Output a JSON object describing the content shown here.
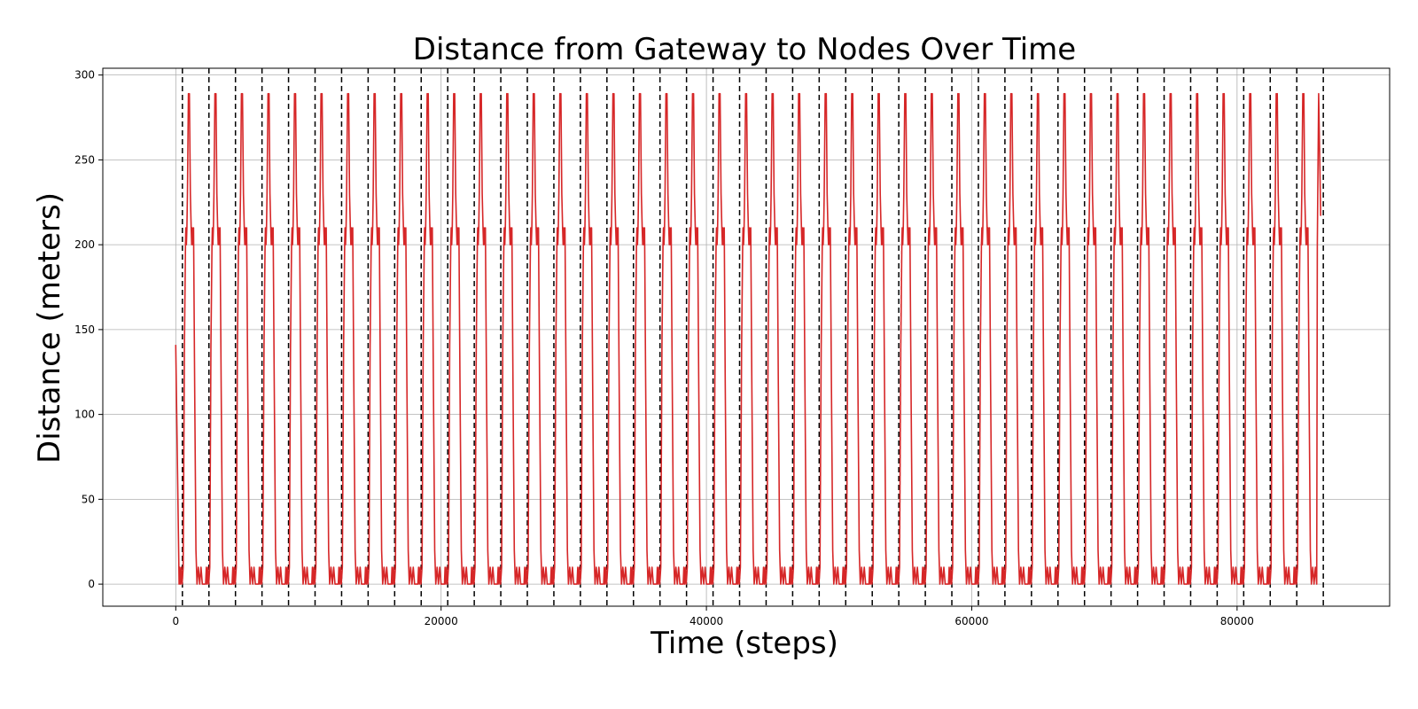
{
  "chart_data": {
    "type": "line",
    "title": "Distance from Gateway to Nodes Over Time",
    "xlabel": "Time (steps)",
    "ylabel": "Distance (meters)",
    "xlim": [
      -5500,
      91500
    ],
    "ylim": [
      -13,
      304
    ],
    "xticks": [
      0,
      20000,
      40000,
      60000,
      80000
    ],
    "yticks": [
      0,
      50,
      100,
      150,
      200,
      250,
      300
    ],
    "grid": true,
    "series": [
      {
        "color": "#d62728",
        "period": 2000,
        "start": {
          "x": 0,
          "y": 141
        },
        "end": {
          "x": 86300,
          "y": 217
        },
        "plateau_low": [
          0,
          10
        ],
        "plateau_mid": [
          200,
          210
        ],
        "peak": 289
      }
    ],
    "vlines": {
      "style": "dashed",
      "color": "#000000",
      "x": [
        500,
        2500,
        4500,
        6500,
        8500,
        10500,
        12500,
        14500,
        16500,
        18500,
        20500,
        22500,
        24500,
        26500,
        28500,
        30500,
        32500,
        34500,
        36500,
        38500,
        40500,
        42500,
        44500,
        46500,
        48500,
        50500,
        52500,
        54500,
        56500,
        58500,
        60500,
        62500,
        64500,
        66500,
        68500,
        70500,
        72500,
        74500,
        76500,
        78500,
        80500,
        82500,
        84500,
        86500
      ]
    }
  }
}
